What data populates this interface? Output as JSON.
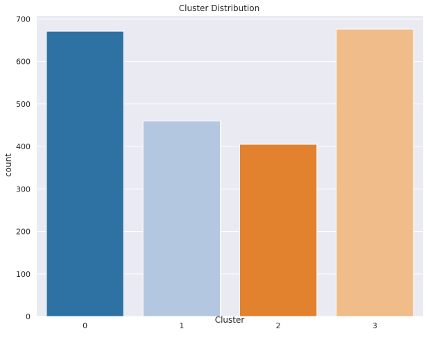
{
  "chart_data": {
    "type": "bar",
    "title": "Cluster Distribution",
    "xlabel": "Cluster",
    "ylabel": "count",
    "categories": [
      "0",
      "1",
      "2",
      "3"
    ],
    "values": [
      671,
      460,
      405,
      676
    ],
    "ylim": [
      0,
      707
    ],
    "yticks": [
      "0",
      "100",
      "200",
      "300",
      "400",
      "500",
      "600",
      "700"
    ],
    "colors": [
      "#2e72a3",
      "#b3c7e1",
      "#e2822e",
      "#efbc8a"
    ],
    "grid": true,
    "legend": "none",
    "background": "#eaeaf2",
    "gridcolor": "#ffffff"
  }
}
